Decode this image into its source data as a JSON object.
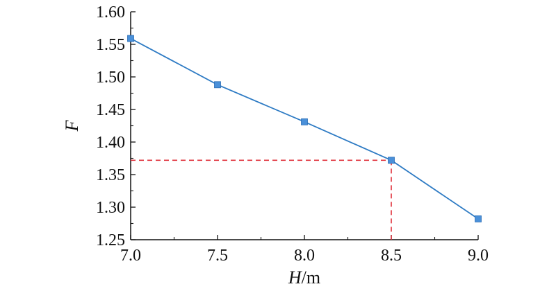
{
  "chart_data": {
    "type": "line",
    "x": [
      7.0,
      7.5,
      8.0,
      8.5,
      9.0
    ],
    "series": [
      {
        "values": [
          1.559,
          1.488,
          1.431,
          1.372,
          1.282
        ],
        "color": "#2e7bc4",
        "marker_color": "#4a90d9",
        "marker": "square"
      }
    ],
    "xlim": [
      7.0,
      9.0
    ],
    "ylim": [
      1.25,
      1.6
    ],
    "x_ticks": [
      7.0,
      7.5,
      8.0,
      8.5,
      9.0
    ],
    "x_tick_labels": [
      "7.0",
      "7.5",
      "8.0",
      "8.5",
      "9.0"
    ],
    "y_ticks": [
      1.25,
      1.3,
      1.35,
      1.4,
      1.45,
      1.5,
      1.55,
      1.6
    ],
    "y_tick_labels": [
      "1.25",
      "1.30",
      "1.35",
      "1.40",
      "1.45",
      "1.50",
      "1.55",
      "1.60"
    ],
    "xlabel": {
      "var": "H",
      "unit": "/m"
    },
    "ylabel": "F",
    "grid": false,
    "reference_lines": {
      "x": 8.5,
      "y": 1.372,
      "color": "#e0303a",
      "style": "dashed"
    }
  }
}
